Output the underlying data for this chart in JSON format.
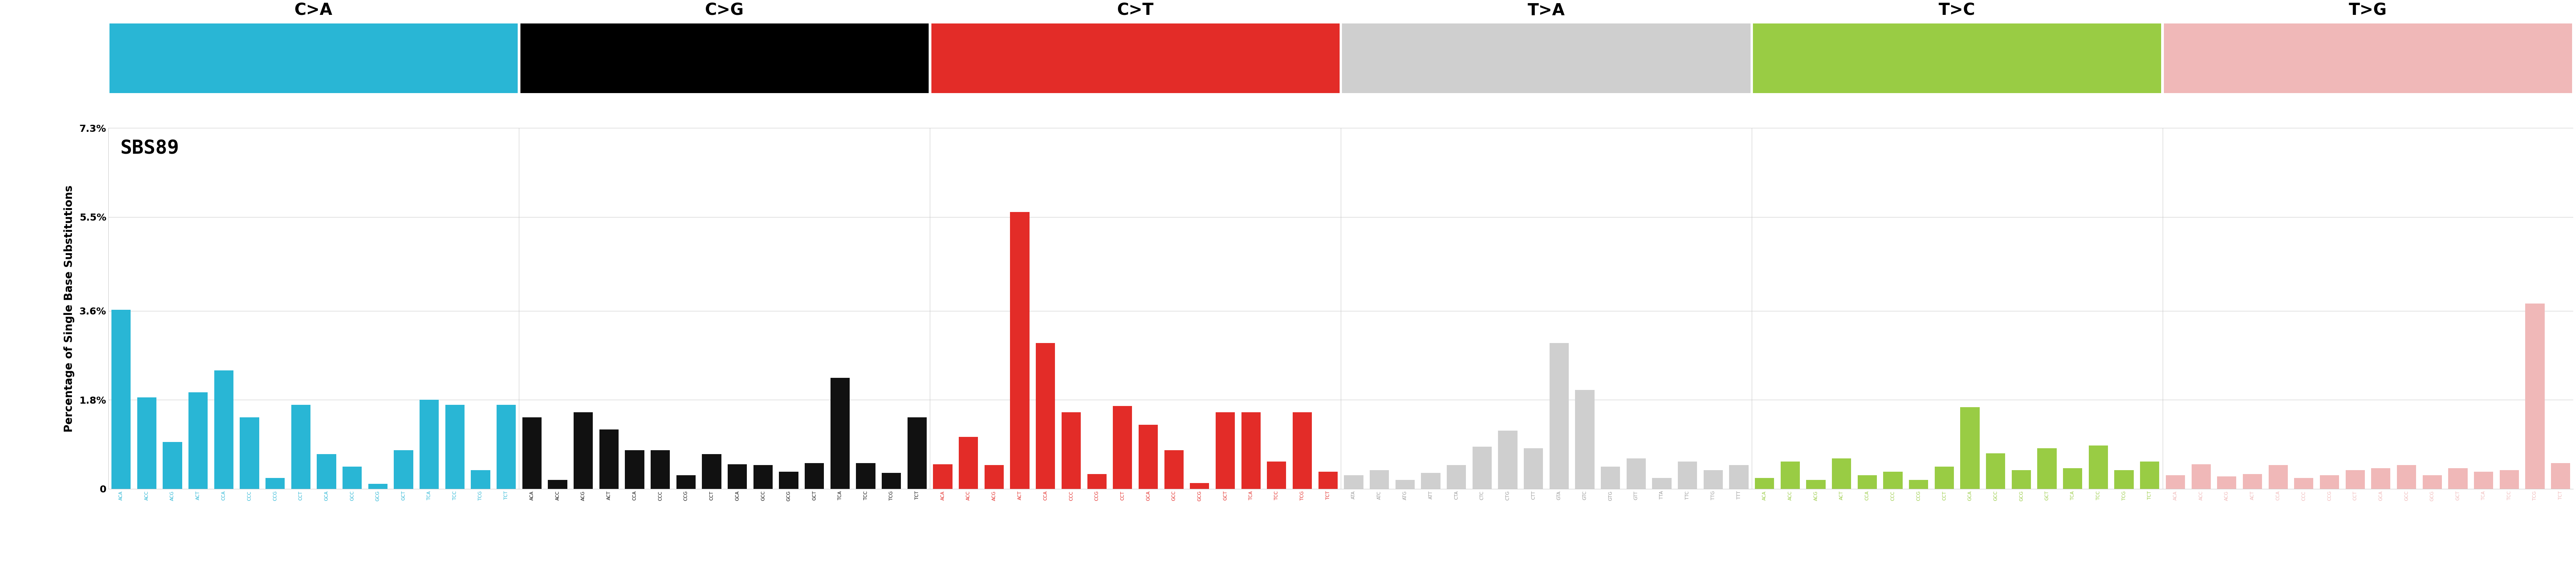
{
  "title": "SBS89",
  "ylabel": "Percentage of Single Base Substitutions",
  "ylim": [
    0,
    0.073
  ],
  "yticks": [
    0,
    0.018,
    0.036,
    0.055,
    0.073
  ],
  "ytick_labels": [
    "0",
    "1.8%",
    "3.6%",
    "5.5%",
    "7.3%"
  ],
  "mutation_types": [
    "C>A",
    "C>G",
    "C>T",
    "T>A",
    "T>C",
    "T>G"
  ],
  "mutation_colors": [
    "#29b6d5",
    "#000000",
    "#e32c28",
    "#cfcfcf",
    "#99cc44",
    "#f0b8b8"
  ],
  "categories": [
    "ACA",
    "ACC",
    "ACG",
    "ACT",
    "CCA",
    "CCC",
    "CCG",
    "CCT",
    "GCA",
    "GCC",
    "GCG",
    "GCT",
    "TCA",
    "TCC",
    "TCG",
    "TCT",
    "ACA",
    "ACC",
    "ACG",
    "ACT",
    "CCA",
    "CCC",
    "CCG",
    "CCT",
    "GCA",
    "GCC",
    "GCG",
    "GCT",
    "TCA",
    "TCC",
    "TCG",
    "TCT",
    "ACA",
    "ACC",
    "ACG",
    "ACT",
    "CCA",
    "CCC",
    "CCG",
    "CCT",
    "GCA",
    "GCC",
    "GCG",
    "GCT",
    "TCA",
    "TCC",
    "TCG",
    "TCT",
    "ATA",
    "ATC",
    "ATG",
    "ATT",
    "CTA",
    "CTC",
    "CTG",
    "CTT",
    "GTA",
    "GTC",
    "GTG",
    "GTT",
    "TTA",
    "TTC",
    "TTG",
    "TTT",
    "ACA",
    "ACC",
    "ACG",
    "ACT",
    "CCA",
    "CCC",
    "CCG",
    "CCT",
    "GCA",
    "GCC",
    "GCG",
    "GCT",
    "TCA",
    "TCC",
    "TCG",
    "TCT",
    "ACA",
    "ACC",
    "ACG",
    "ACT",
    "CCA",
    "CCC",
    "CCG",
    "CCT",
    "GCA",
    "GCC",
    "GCG",
    "GCT",
    "TCA",
    "TCC",
    "TCG",
    "TCT"
  ],
  "values": [
    0.0362,
    0.0185,
    0.0095,
    0.0195,
    0.024,
    0.0145,
    0.0022,
    0.017,
    0.007,
    0.0045,
    0.001,
    0.0078,
    0.018,
    0.017,
    0.0038,
    0.017,
    0.0145,
    0.0018,
    0.0155,
    0.012,
    0.0078,
    0.0078,
    0.0028,
    0.007,
    0.005,
    0.0048,
    0.0035,
    0.0052,
    0.0225,
    0.0052,
    0.0032,
    0.0145,
    0.005,
    0.0105,
    0.0048,
    0.056,
    0.0295,
    0.0155,
    0.003,
    0.0168,
    0.013,
    0.0078,
    0.0012,
    0.0155,
    0.0155,
    0.0055,
    0.0155,
    0.0035,
    0.0028,
    0.0038,
    0.0018,
    0.0032,
    0.0048,
    0.0085,
    0.0118,
    0.0082,
    0.0295,
    0.02,
    0.0045,
    0.0062,
    0.0022,
    0.0055,
    0.0038,
    0.0048,
    0.0022,
    0.0055,
    0.0018,
    0.0062,
    0.0028,
    0.0035,
    0.0018,
    0.0045,
    0.0165,
    0.0072,
    0.0038,
    0.0082,
    0.0042,
    0.0088,
    0.0038,
    0.0055,
    0.0028,
    0.005,
    0.0025,
    0.003,
    0.0048,
    0.0022,
    0.0028,
    0.0038,
    0.0042,
    0.0048,
    0.0028,
    0.0042,
    0.0035,
    0.0038,
    0.0375,
    0.0052
  ],
  "bar_colors": [
    "#29b6d5",
    "#29b6d5",
    "#29b6d5",
    "#29b6d5",
    "#29b6d5",
    "#29b6d5",
    "#29b6d5",
    "#29b6d5",
    "#29b6d5",
    "#29b6d5",
    "#29b6d5",
    "#29b6d5",
    "#29b6d5",
    "#29b6d5",
    "#29b6d5",
    "#29b6d5",
    "#111111",
    "#111111",
    "#111111",
    "#111111",
    "#111111",
    "#111111",
    "#111111",
    "#111111",
    "#111111",
    "#111111",
    "#111111",
    "#111111",
    "#111111",
    "#111111",
    "#111111",
    "#111111",
    "#e32c28",
    "#e32c28",
    "#e32c28",
    "#e32c28",
    "#e32c28",
    "#e32c28",
    "#e32c28",
    "#e32c28",
    "#e32c28",
    "#e32c28",
    "#e32c28",
    "#e32c28",
    "#e32c28",
    "#e32c28",
    "#e32c28",
    "#e32c28",
    "#cfcfcf",
    "#cfcfcf",
    "#cfcfcf",
    "#cfcfcf",
    "#cfcfcf",
    "#cfcfcf",
    "#cfcfcf",
    "#cfcfcf",
    "#cfcfcf",
    "#cfcfcf",
    "#cfcfcf",
    "#cfcfcf",
    "#cfcfcf",
    "#cfcfcf",
    "#cfcfcf",
    "#cfcfcf",
    "#99cc44",
    "#99cc44",
    "#99cc44",
    "#99cc44",
    "#99cc44",
    "#99cc44",
    "#99cc44",
    "#99cc44",
    "#99cc44",
    "#99cc44",
    "#99cc44",
    "#99cc44",
    "#99cc44",
    "#99cc44",
    "#99cc44",
    "#99cc44",
    "#f0b8b8",
    "#f0b8b8",
    "#f0b8b8",
    "#f0b8b8",
    "#f0b8b8",
    "#f0b8b8",
    "#f0b8b8",
    "#f0b8b8",
    "#f0b8b8",
    "#f0b8b8",
    "#f0b8b8",
    "#f0b8b8",
    "#f0b8b8",
    "#f0b8b8",
    "#f0b8b8",
    "#f0b8b8"
  ],
  "tick_colors": [
    "#29b6d5",
    "#29b6d5",
    "#29b6d5",
    "#29b6d5",
    "#29b6d5",
    "#29b6d5",
    "#29b6d5",
    "#29b6d5",
    "#29b6d5",
    "#29b6d5",
    "#29b6d5",
    "#29b6d5",
    "#29b6d5",
    "#29b6d5",
    "#29b6d5",
    "#29b6d5",
    "#111111",
    "#111111",
    "#111111",
    "#111111",
    "#111111",
    "#111111",
    "#111111",
    "#111111",
    "#111111",
    "#111111",
    "#111111",
    "#111111",
    "#111111",
    "#111111",
    "#111111",
    "#111111",
    "#e32c28",
    "#e32c28",
    "#e32c28",
    "#e32c28",
    "#e32c28",
    "#e32c28",
    "#e32c28",
    "#e32c28",
    "#e32c28",
    "#e32c28",
    "#e32c28",
    "#e32c28",
    "#e32c28",
    "#e32c28",
    "#e32c28",
    "#e32c28",
    "#999999",
    "#999999",
    "#999999",
    "#999999",
    "#999999",
    "#999999",
    "#999999",
    "#999999",
    "#999999",
    "#999999",
    "#999999",
    "#999999",
    "#999999",
    "#999999",
    "#999999",
    "#999999",
    "#99cc44",
    "#99cc44",
    "#99cc44",
    "#99cc44",
    "#99cc44",
    "#99cc44",
    "#99cc44",
    "#99cc44",
    "#99cc44",
    "#99cc44",
    "#99cc44",
    "#99cc44",
    "#99cc44",
    "#99cc44",
    "#99cc44",
    "#99cc44",
    "#f0b8b8",
    "#f0b8b8",
    "#f0b8b8",
    "#f0b8b8",
    "#f0b8b8",
    "#f0b8b8",
    "#f0b8b8",
    "#f0b8b8",
    "#f0b8b8",
    "#f0b8b8",
    "#f0b8b8",
    "#f0b8b8",
    "#f0b8b8",
    "#f0b8b8",
    "#f0b8b8",
    "#f0b8b8"
  ]
}
